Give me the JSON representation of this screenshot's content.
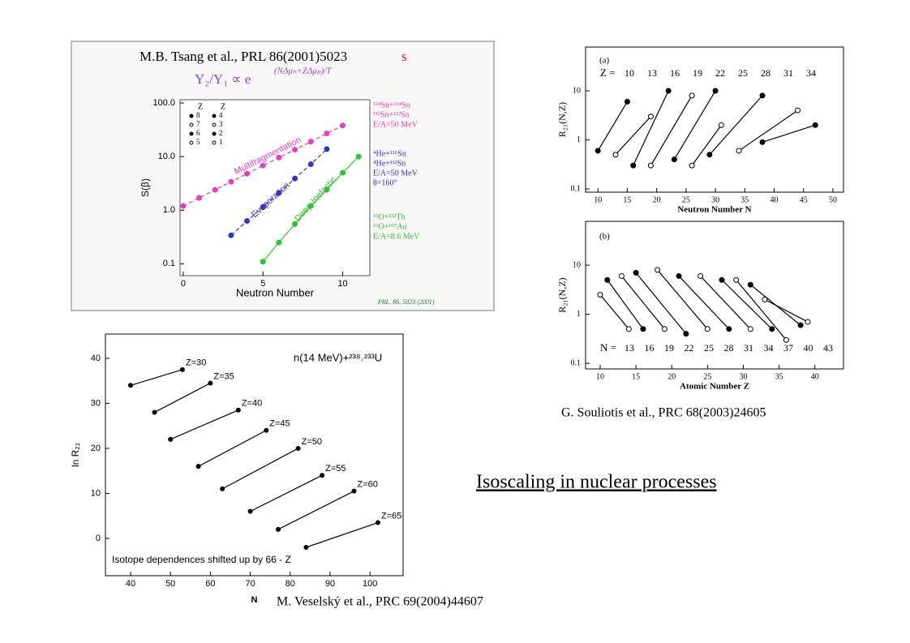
{
  "heading": "Isoscaling in nuclear processes",
  "captions": {
    "tsang": "M.B. Tsang et al., PRL 86(2001)5023",
    "tsang_mark": "s",
    "souliotis": "G. Souliotis et al., PRC 68(2003)24605",
    "veselsky": "M. Veselský et al., PRC 69(2004)44607"
  },
  "chart_data": [
    {
      "type": "line",
      "title": "Y₂/Y₁ ∝ e",
      "title_exponent": "(NΔμₙ+ZΔμₚ)/T",
      "xlabel": "Neutron Number",
      "ylabel": "S(β)",
      "log_y": true,
      "xlim": [
        -0.2,
        11.7
      ],
      "ylim": [
        0.06,
        115
      ],
      "xticks": [
        0,
        5,
        10
      ],
      "yticks": [
        0.1,
        {
          "value": 1,
          "label": "1.0"
        },
        {
          "value": 10,
          "label": "10.0"
        },
        {
          "value": 100,
          "label": "100.0"
        }
      ],
      "legend_title": "Z",
      "legend": [
        "8",
        "7",
        "6",
        "5",
        "4",
        "3",
        "2",
        "1"
      ],
      "reactions": [
        [
          "¹²⁴Sn+¹²⁴Sn",
          "¹¹²Sn+¹¹²Sn",
          "E/A=50 MeV"
        ],
        [
          "⁴He+¹¹⁶Sn",
          "⁴He+¹¹²Sn",
          "E/A=50 MeV",
          "θ=160°"
        ],
        [
          "¹⁶O+²³²Th",
          "¹⁶O+¹⁹⁷Au",
          "E/A=8.6 MeV"
        ]
      ],
      "citation": "PRL. 86, 5023 (2001)",
      "series": [
        {
          "name": "Multifragmentation",
          "color": "#e040c0",
          "x": [
            0,
            1,
            2,
            3,
            4,
            5,
            6,
            7,
            8,
            9,
            10
          ],
          "values": [
            1.2,
            1.7,
            2.4,
            3.4,
            4.8,
            6.8,
            9.6,
            13.5,
            19,
            27,
            38
          ]
        },
        {
          "name": "Evaporation",
          "color": "#3535c8",
          "x": [
            3,
            4,
            5,
            6,
            7,
            8,
            9
          ],
          "values": [
            0.34,
            0.63,
            1.15,
            2.1,
            3.9,
            7.2,
            13.8
          ]
        },
        {
          "name": "Deep-Inelastic",
          "color": "#30c030",
          "x": [
            5,
            6,
            7,
            8,
            9,
            10,
            11
          ],
          "values": [
            0.11,
            0.25,
            0.55,
            1.2,
            2.4,
            5,
            10
          ]
        }
      ]
    },
    {
      "type": "line",
      "panel": "(a)",
      "xlabel": "Neutron Number N",
      "ylabel": "R₂₁(N,Z)",
      "log_y": true,
      "name_prefix": "Z =",
      "xlim": [
        7.9,
        51.8
      ],
      "ylim": [
        0.086,
        78
      ],
      "xticks": [
        10,
        15,
        20,
        25,
        30,
        35,
        40,
        45,
        50
      ],
      "yticks": [
        0.1,
        1,
        10
      ],
      "series": [
        {
          "name": "10",
          "color": "#000000",
          "marker": "filled",
          "x": [
            10,
            15
          ],
          "values": [
            0.6,
            6
          ]
        },
        {
          "name": "13",
          "color": "#000000",
          "marker": "open",
          "x": [
            13,
            19
          ],
          "values": [
            0.5,
            3
          ]
        },
        {
          "name": "16",
          "color": "#000000",
          "marker": "filled",
          "x": [
            16,
            22
          ],
          "values": [
            0.3,
            10
          ]
        },
        {
          "name": "19",
          "color": "#000000",
          "marker": "open",
          "x": [
            19,
            26
          ],
          "values": [
            0.3,
            8
          ]
        },
        {
          "name": "22",
          "color": "#000000",
          "marker": "filled",
          "x": [
            23,
            30
          ],
          "values": [
            0.4,
            10
          ]
        },
        {
          "name": "25",
          "color": "#000000",
          "marker": "open",
          "x": [
            26,
            31
          ],
          "values": [
            0.3,
            2
          ]
        },
        {
          "name": "28",
          "color": "#000000",
          "marker": "filled",
          "x": [
            29,
            38
          ],
          "values": [
            0.5,
            8
          ]
        },
        {
          "name": "31",
          "color": "#000000",
          "marker": "open",
          "x": [
            34,
            44
          ],
          "values": [
            0.6,
            4
          ]
        },
        {
          "name": "34",
          "color": "#000000",
          "marker": "filled",
          "x": [
            38,
            47
          ],
          "values": [
            0.9,
            2
          ]
        }
      ]
    },
    {
      "type": "line",
      "panel": "(b)",
      "xlabel": "Atomic Number Z",
      "ylabel": "R₂₁(N,Z)",
      "log_y": true,
      "name_prefix": "N =",
      "xlim": [
        7.96,
        44
      ],
      "ylim": [
        0.077,
        78
      ],
      "xticks": [
        10,
        15,
        20,
        25,
        30,
        35,
        40
      ],
      "yticks": [
        0.1,
        1,
        10
      ],
      "series": [
        {
          "name": "13",
          "color": "#000000",
          "marker": "open",
          "x": [
            10,
            14
          ],
          "values": [
            2.5,
            0.5
          ]
        },
        {
          "name": "16",
          "color": "#000000",
          "marker": "filled",
          "x": [
            11,
            16
          ],
          "values": [
            5,
            0.5
          ]
        },
        {
          "name": "19",
          "color": "#000000",
          "marker": "open",
          "x": [
            13,
            19
          ],
          "values": [
            6,
            0.5
          ]
        },
        {
          "name": "22",
          "color": "#000000",
          "marker": "filled",
          "x": [
            15,
            22
          ],
          "values": [
            7,
            0.4
          ]
        },
        {
          "name": "25",
          "color": "#000000",
          "marker": "open",
          "x": [
            18,
            25
          ],
          "values": [
            8,
            0.5
          ]
        },
        {
          "name": "28",
          "color": "#000000",
          "marker": "filled",
          "x": [
            21,
            28
          ],
          "values": [
            6,
            0.5
          ]
        },
        {
          "name": "31",
          "color": "#000000",
          "marker": "open",
          "x": [
            24,
            31
          ],
          "values": [
            6,
            0.5
          ]
        },
        {
          "name": "34",
          "color": "#000000",
          "marker": "filled",
          "x": [
            27,
            34
          ],
          "values": [
            5,
            0.5
          ]
        },
        {
          "name": "37",
          "color": "#000000",
          "marker": "open",
          "x": [
            29,
            36
          ],
          "values": [
            5,
            0.3
          ]
        },
        {
          "name": "40",
          "color": "#000000",
          "marker": "filled",
          "x": [
            31,
            38
          ],
          "values": [
            4,
            0.6
          ]
        },
        {
          "name": "43",
          "color": "#000000",
          "marker": "open",
          "x": [
            33,
            39
          ],
          "values": [
            2,
            0.7
          ]
        }
      ]
    },
    {
      "type": "line",
      "title": "n(14 MeV)+²³⁸˒²³³U",
      "note": "Isotope dependences shifted up by 66 - Z",
      "xlabel": "N",
      "ylabel": "ln R₂₁",
      "log_y": false,
      "xlim": [
        33.7,
        108.3
      ],
      "ylim": [
        -8.3,
        45.4
      ],
      "xticks": [
        40,
        50,
        60,
        70,
        80,
        90,
        100
      ],
      "yticks": [
        0,
        10,
        20,
        30,
        40
      ],
      "series": [
        {
          "name": "Z=30",
          "color": "#000000",
          "marker": "filled",
          "x": [
            40,
            53
          ],
          "values": [
            34,
            37.5
          ]
        },
        {
          "name": "Z=35",
          "color": "#000000",
          "marker": "filled",
          "x": [
            46,
            60
          ],
          "values": [
            28,
            34.5
          ]
        },
        {
          "name": "Z=40",
          "color": "#000000",
          "marker": "filled",
          "x": [
            50,
            67
          ],
          "values": [
            22,
            28.5
          ]
        },
        {
          "name": "Z=45",
          "color": "#000000",
          "marker": "filled",
          "x": [
            57,
            74
          ],
          "values": [
            16,
            24
          ]
        },
        {
          "name": "Z=50",
          "color": "#000000",
          "marker": "filled",
          "x": [
            63,
            82
          ],
          "values": [
            11,
            20
          ]
        },
        {
          "name": "Z=55",
          "color": "#000000",
          "marker": "filled",
          "x": [
            70,
            88
          ],
          "values": [
            6,
            14
          ]
        },
        {
          "name": "Z=60",
          "color": "#000000",
          "marker": "filled",
          "x": [
            77,
            96
          ],
          "values": [
            2,
            10.5
          ]
        },
        {
          "name": "Z=65",
          "color": "#000000",
          "marker": "filled",
          "x": [
            84,
            102
          ],
          "values": [
            -2,
            3.5
          ]
        }
      ]
    }
  ]
}
